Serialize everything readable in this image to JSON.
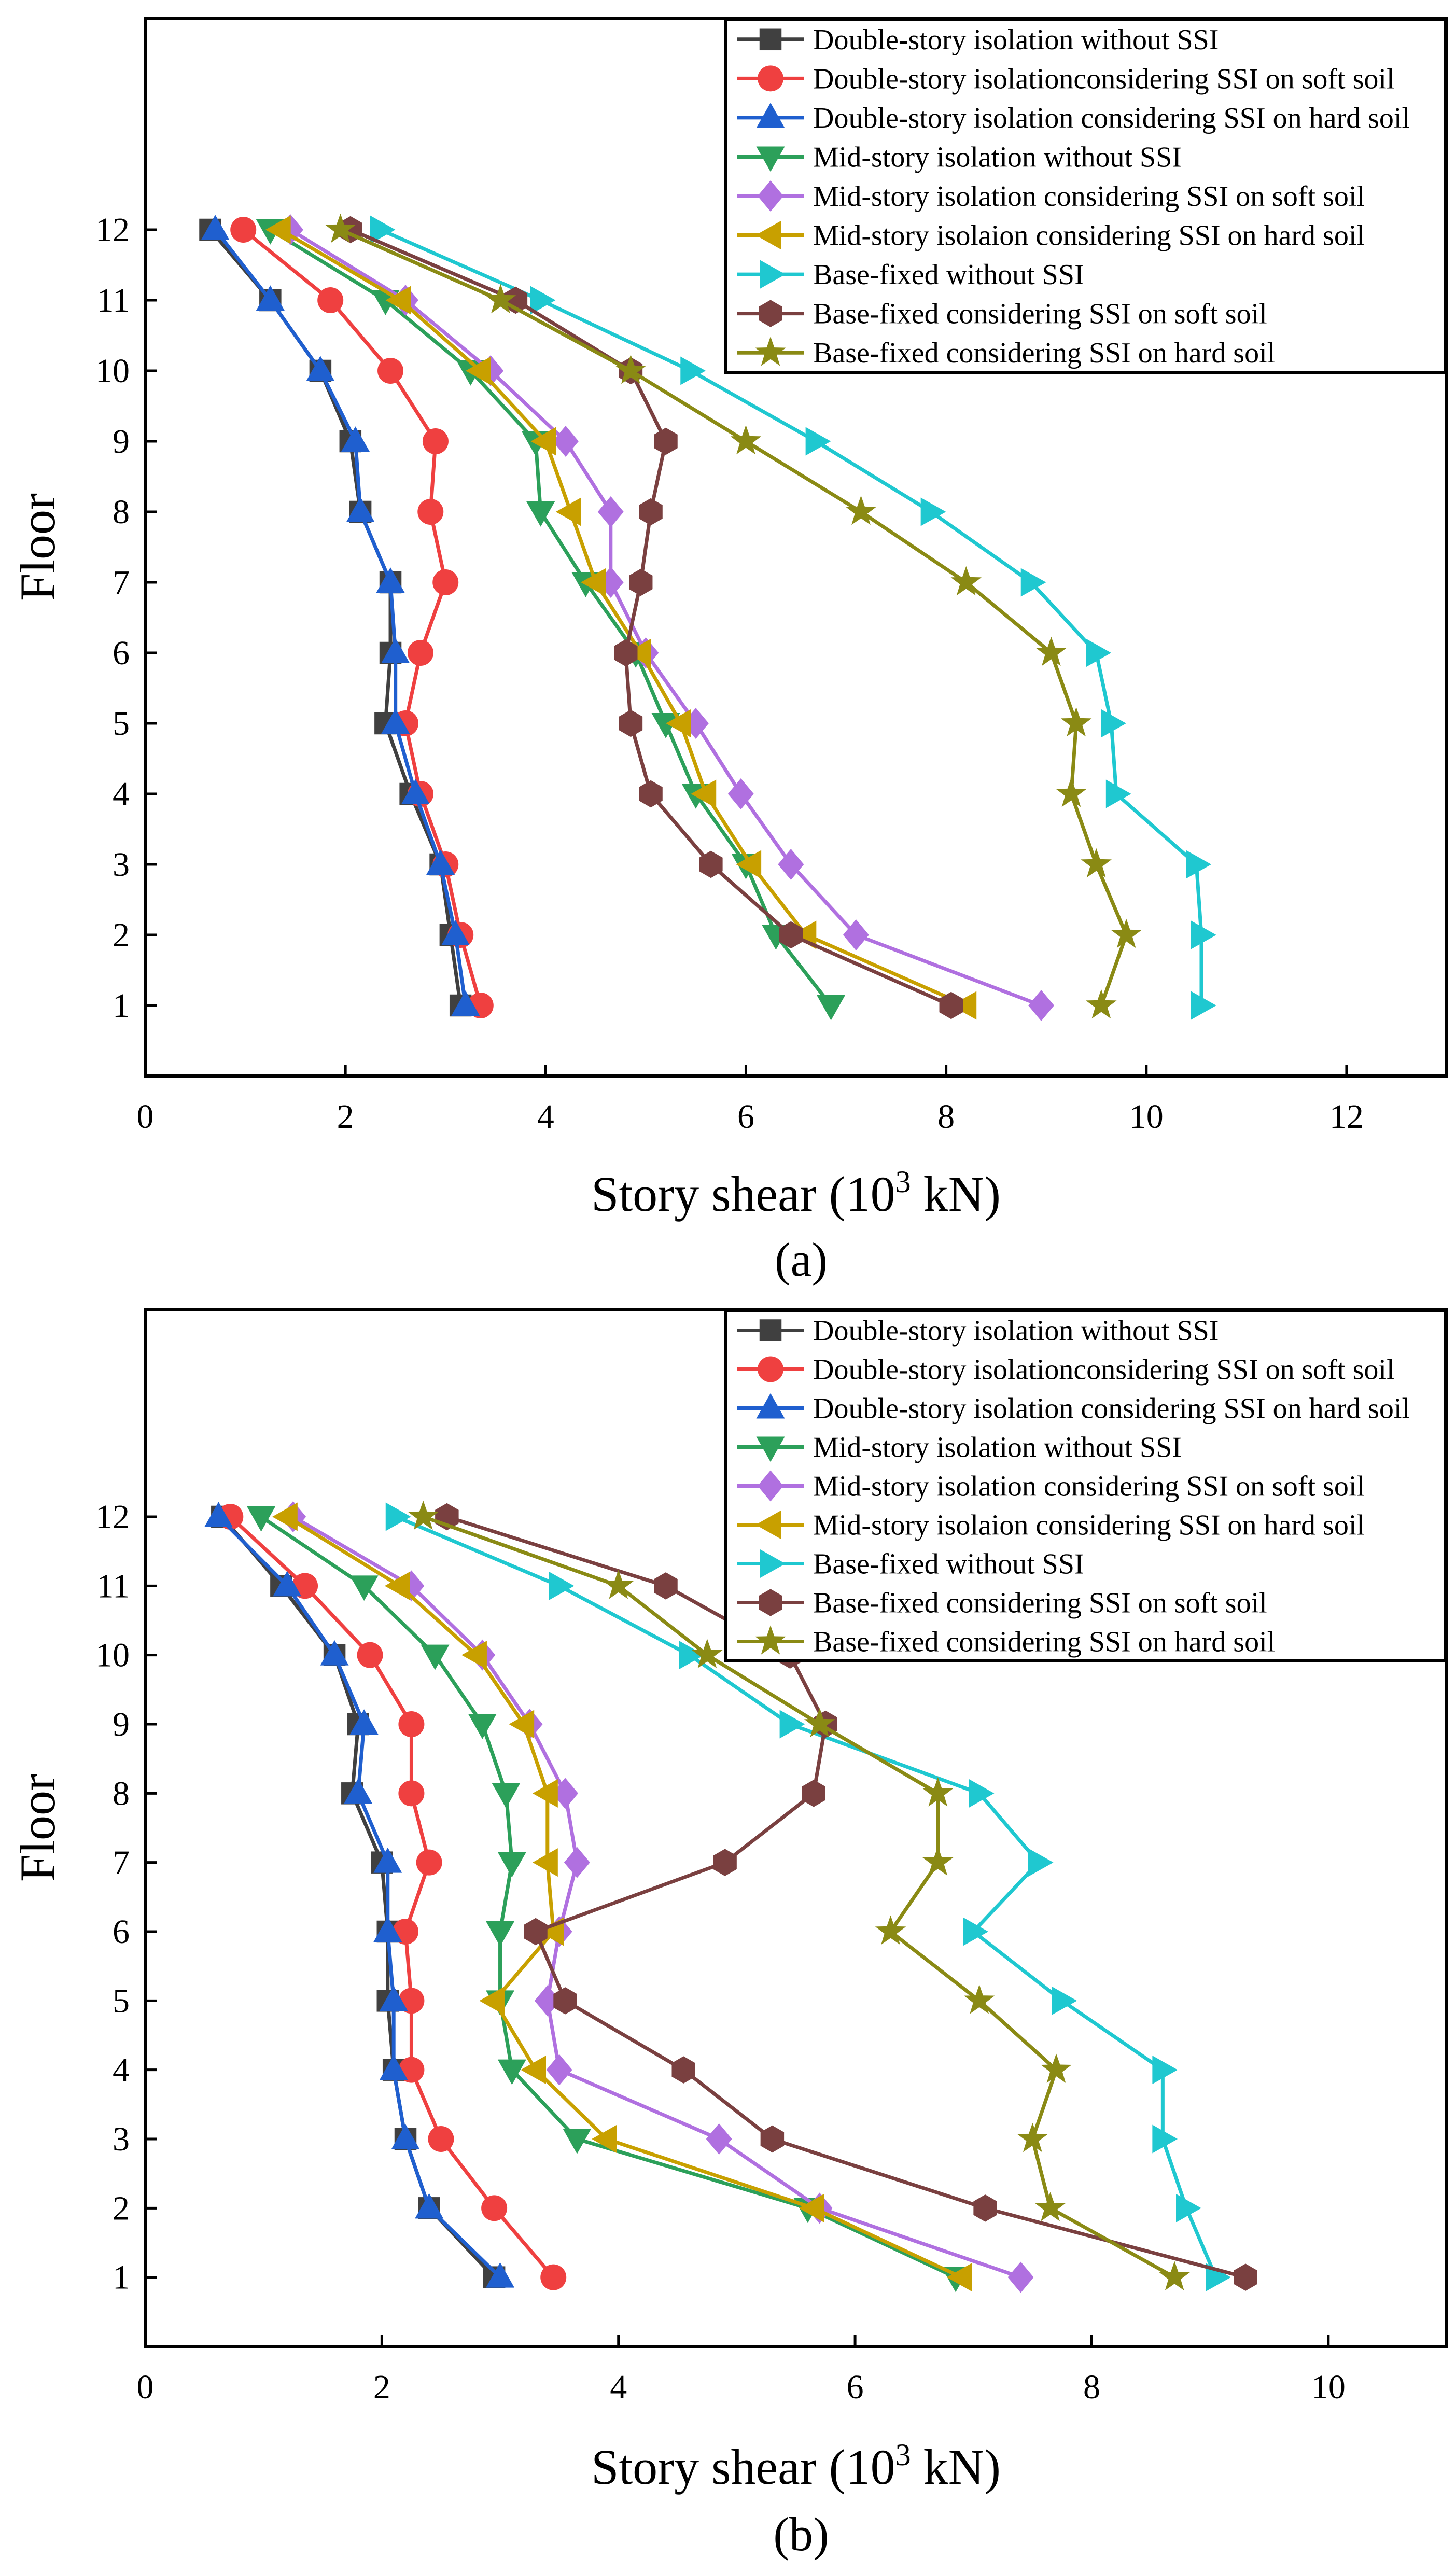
{
  "chart_data": [
    {
      "type": "line",
      "panel_label": "(a)",
      "xlabel": "Story shear (10",
      "xlabel_sup": "3",
      "xlabel_suffix": " kN)",
      "ylabel": "Floor",
      "xlim": [
        0,
        13
      ],
      "ylim": [
        0,
        15
      ],
      "xticks": [
        0,
        2,
        4,
        6,
        8,
        10,
        12
      ],
      "yticks": [
        1,
        2,
        3,
        4,
        5,
        6,
        7,
        8,
        9,
        10,
        11,
        12
      ],
      "floors": [
        1,
        2,
        3,
        4,
        5,
        6,
        7,
        8,
        9,
        10,
        11,
        12
      ],
      "legend_position": "top-right",
      "series": [
        {
          "name": "Double-story isolation without SSI",
          "color": "#404040",
          "marker": "square",
          "values": [
            3.15,
            3.05,
            2.95,
            2.65,
            2.4,
            2.45,
            2.45,
            2.15,
            2.05,
            1.75,
            1.25,
            0.65
          ]
        },
        {
          "name": "Double-story isolationconsidering SSI on soft soil",
          "color": "#ef4040",
          "marker": "circle",
          "values": [
            3.35,
            3.15,
            3.0,
            2.75,
            2.6,
            2.75,
            3.0,
            2.85,
            2.9,
            2.45,
            1.85,
            0.98
          ]
        },
        {
          "name": "Double-story isolation considering SSI on hard soil",
          "color": "#1f5fcf",
          "marker": "triangle-up",
          "values": [
            3.2,
            3.1,
            2.95,
            2.7,
            2.5,
            2.5,
            2.45,
            2.15,
            2.1,
            1.75,
            1.25,
            0.7
          ]
        },
        {
          "name": "Mid-story isolation without SSI",
          "color": "#2ca05a",
          "marker": "triangle-down",
          "values": [
            6.85,
            6.3,
            6.0,
            5.5,
            5.2,
            4.9,
            4.4,
            3.95,
            3.9,
            3.25,
            2.4,
            1.25
          ]
        },
        {
          "name": "Mid-story isolation considering SSI on soft soil",
          "color": "#b070e0",
          "marker": "diamond",
          "values": [
            8.95,
            7.1,
            6.45,
            5.95,
            5.5,
            5.0,
            4.65,
            4.65,
            4.2,
            3.45,
            2.6,
            1.45
          ]
        },
        {
          "name": "Mid-story isolaion considering SSI on hard soil",
          "color": "#c8a000",
          "marker": "triangle-left",
          "values": [
            8.2,
            6.6,
            6.05,
            5.6,
            5.35,
            4.95,
            4.5,
            4.25,
            4.0,
            3.35,
            2.55,
            1.35
          ]
        },
        {
          "name": "Base-fixed without SSI",
          "color": "#1fc8d0",
          "marker": "triangle-right",
          "values": [
            10.55,
            10.55,
            10.5,
            9.7,
            9.65,
            9.5,
            8.85,
            7.85,
            6.7,
            5.45,
            3.95,
            2.35
          ]
        },
        {
          "name": "Base-fixed considering SSI on soft soil",
          "color": "#7a4040",
          "marker": "hexagon",
          "values": [
            8.05,
            6.45,
            5.65,
            5.05,
            4.85,
            4.8,
            4.95,
            5.05,
            5.2,
            4.85,
            3.7,
            2.05
          ]
        },
        {
          "name": "Base-fixed considering SSI on hard soil",
          "color": "#8a8a14",
          "marker": "star",
          "values": [
            9.55,
            9.8,
            9.5,
            9.25,
            9.3,
            9.05,
            8.2,
            7.15,
            6.0,
            4.85,
            3.55,
            1.95
          ]
        }
      ]
    },
    {
      "type": "line",
      "panel_label": "(b)",
      "xlabel": "Story shear (10",
      "xlabel_sup": "3",
      "xlabel_suffix": " kN)",
      "ylabel": "Floor",
      "xlim": [
        0,
        11
      ],
      "ylim": [
        0,
        15
      ],
      "xticks": [
        0,
        2,
        4,
        6,
        8,
        10
      ],
      "yticks": [
        1,
        2,
        3,
        4,
        5,
        6,
        7,
        8,
        9,
        10,
        11,
        12
      ],
      "floors": [
        1,
        2,
        3,
        4,
        5,
        6,
        7,
        8,
        9,
        10,
        11,
        12
      ],
      "legend_position": "top-right",
      "series": [
        {
          "name": "Double-story isolation without SSI",
          "color": "#404040",
          "marker": "square",
          "values": [
            2.95,
            2.4,
            2.2,
            2.1,
            2.05,
            2.05,
            2.0,
            1.75,
            1.8,
            1.6,
            1.15,
            0.65
          ]
        },
        {
          "name": "Double-story isolationconsidering SSI on soft soil",
          "color": "#ef4040",
          "marker": "circle",
          "values": [
            3.45,
            2.95,
            2.5,
            2.25,
            2.25,
            2.2,
            2.4,
            2.25,
            2.25,
            1.9,
            1.35,
            0.72
          ]
        },
        {
          "name": "Double-story isolation considering SSI on hard soil",
          "color": "#1f5fcf",
          "marker": "triangle-up",
          "values": [
            3.0,
            2.4,
            2.2,
            2.1,
            2.1,
            2.05,
            2.05,
            1.8,
            1.85,
            1.6,
            1.2,
            0.62
          ]
        },
        {
          "name": "Mid-story isolation without SSI",
          "color": "#2ca05a",
          "marker": "triangle-down",
          "values": [
            6.85,
            5.6,
            3.65,
            3.1,
            3.0,
            3.0,
            3.1,
            3.05,
            2.85,
            2.45,
            1.85,
            0.98
          ]
        },
        {
          "name": "Mid-story isolation considering SSI on soft soil",
          "color": "#b070e0",
          "marker": "diamond",
          "values": [
            7.4,
            5.7,
            4.85,
            3.5,
            3.4,
            3.5,
            3.65,
            3.55,
            3.25,
            2.85,
            2.25,
            1.25
          ]
        },
        {
          "name": "Mid-story isolaion considering SSI on hard soil",
          "color": "#c8a000",
          "marker": "triangle-left",
          "values": [
            6.9,
            5.65,
            3.9,
            3.3,
            2.95,
            3.45,
            3.4,
            3.4,
            3.2,
            2.8,
            2.15,
            1.2
          ]
        },
        {
          "name": "Base-fixed without SSI",
          "color": "#1fc8d0",
          "marker": "triangle-right",
          "values": [
            9.05,
            8.8,
            8.6,
            8.6,
            7.75,
            7.0,
            7.55,
            7.05,
            5.45,
            4.6,
            3.5,
            2.12
          ]
        },
        {
          "name": "Base-fixed considering SSI on soft soil",
          "color": "#7a4040",
          "marker": "hexagon",
          "values": [
            9.3,
            7.1,
            5.3,
            4.55,
            3.55,
            3.3,
            4.9,
            5.65,
            5.75,
            5.45,
            4.4,
            2.55
          ]
        },
        {
          "name": "Base-fixed considering SSI on hard soil",
          "color": "#8a8a14",
          "marker": "star",
          "values": [
            8.7,
            7.65,
            7.5,
            7.7,
            7.05,
            6.3,
            6.7,
            6.7,
            5.7,
            4.75,
            4.0,
            2.35
          ]
        }
      ]
    }
  ]
}
